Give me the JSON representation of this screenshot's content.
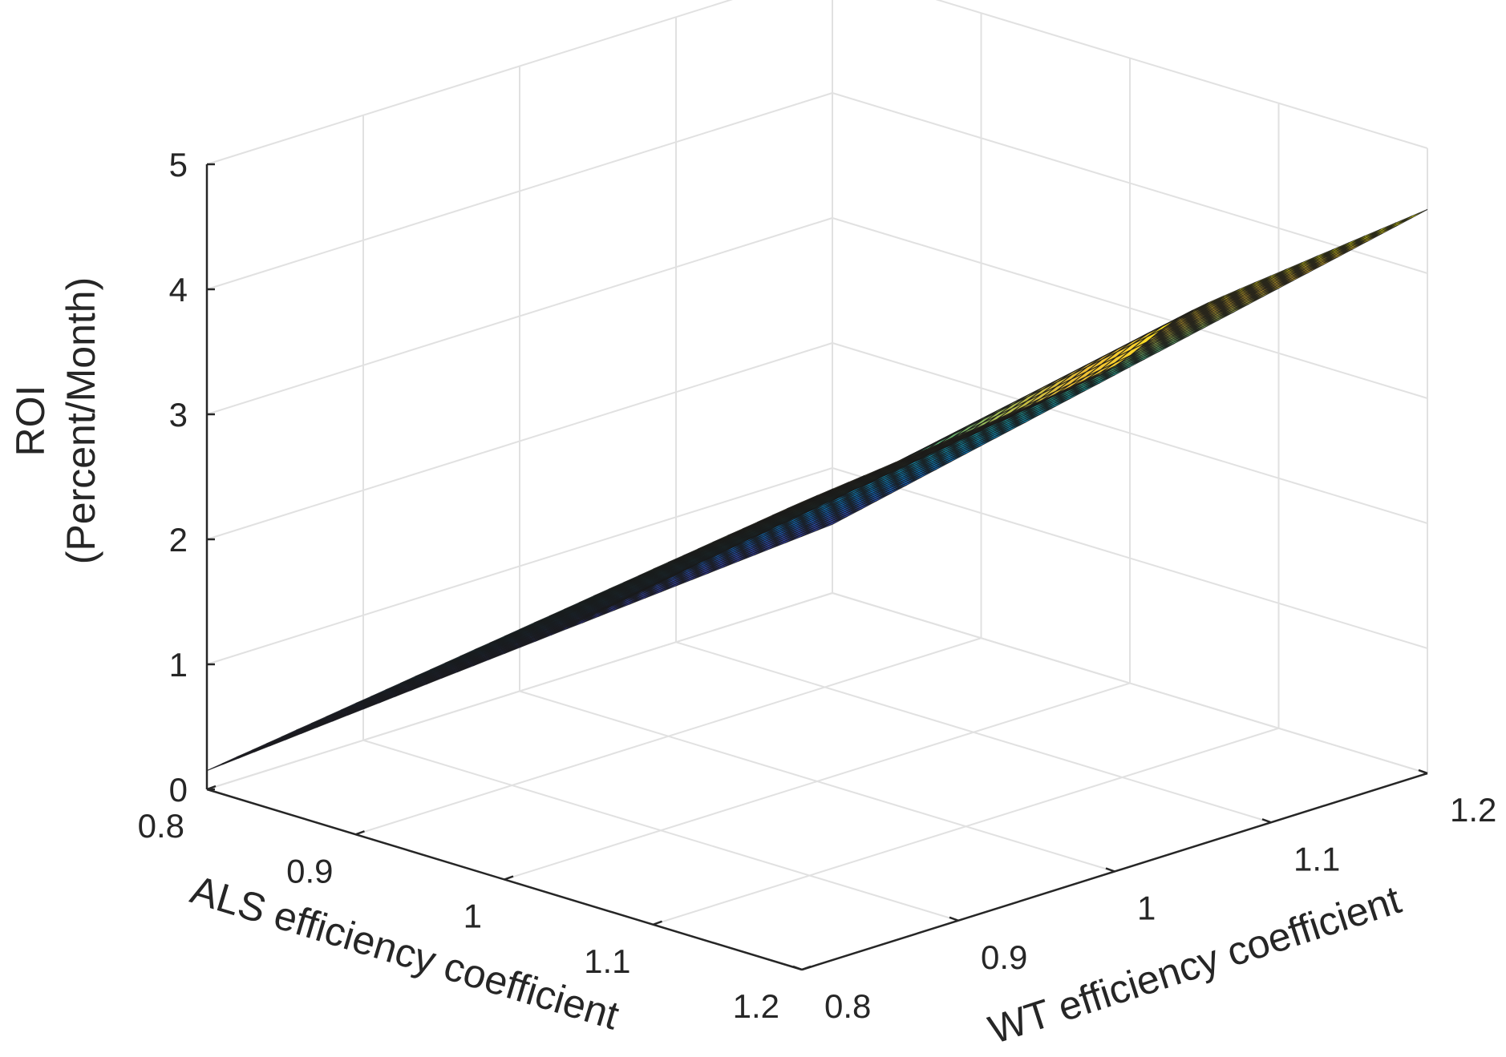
{
  "chart_data": {
    "type": "surface",
    "title": "",
    "xlabel": "ALS efficiency coefficient",
    "ylabel": "WT efficiency coefficient",
    "zlabel_line1": "ROI",
    "zlabel_line2": "(Percent/Month)",
    "x_range": [
      0.8,
      1.2
    ],
    "y_range": [
      0.8,
      1.2
    ],
    "z_range": [
      0,
      5
    ],
    "x_ticks": [
      "0.8",
      "0.9",
      "1",
      "1.1",
      "1.2"
    ],
    "y_ticks": [
      "0.8",
      "0.9",
      "1",
      "1.1",
      "1.2"
    ],
    "z_ticks": [
      "0",
      "1",
      "2",
      "3",
      "4",
      "5"
    ],
    "grid": true,
    "colormap": "parula",
    "grid_resolution": 41,
    "surface_corners": {
      "als_0.8_wt_0.8": 0.15,
      "als_0.8_wt_1.2": 0.55,
      "als_1.2_wt_0.8": 3.85,
      "als_1.2_wt_1.2": 4.4
    },
    "ridge_wt": 1.02,
    "ridge_step": 0.22
  },
  "colors": {
    "mesh_edge": "#1a1a1a",
    "axis": "#262626",
    "grid": "#e1e1e1"
  }
}
